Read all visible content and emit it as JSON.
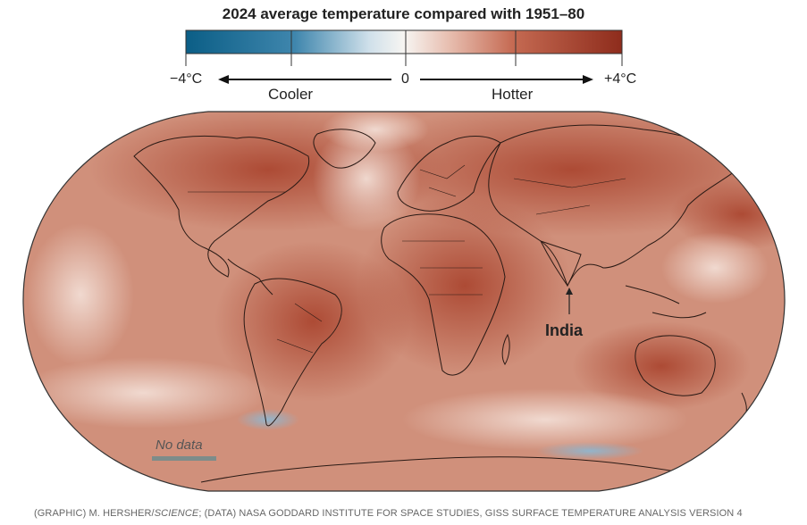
{
  "title": "2024 average temperature compared with 1951–80",
  "legend": {
    "min_label": "−4°C",
    "mid_label": "0",
    "max_label": "+4°C",
    "cooler_label": "Cooler",
    "hotter_label": "Hotter",
    "colors": {
      "cold": "#0a5f86",
      "cool": "#5a9cc0",
      "neutral": "#f5f3f0",
      "warm": "#d7846e",
      "hot": "#8e2f1f"
    }
  },
  "map": {
    "land_fill": "#b8553d",
    "ocean_fill": "#d4937f",
    "no_data_color": "#7d8c8a",
    "annotation_label": "India",
    "no_data_label": "No data"
  },
  "credit": {
    "prefix": "(GRAPHIC) M. HERSHER/",
    "source_italic": "SCIENCE",
    "suffix": "; (DATA) NASA GODDARD INSTITUTE FOR SPACE STUDIES, GISS SURFACE TEMPERATURE ANALYSIS VERSION 4"
  }
}
